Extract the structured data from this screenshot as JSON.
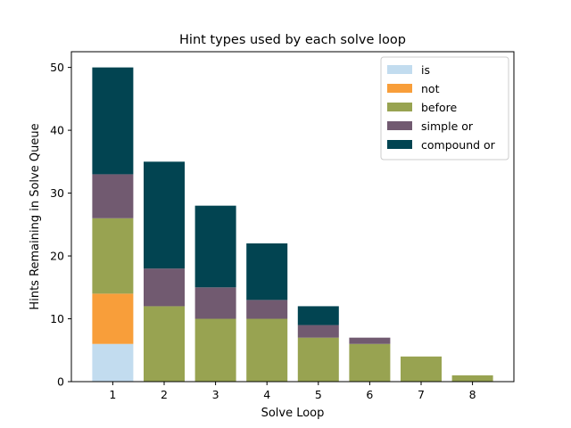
{
  "chart_data": {
    "type": "bar",
    "stacked": true,
    "title": "Hint types used by each solve loop",
    "xlabel": "Solve Loop",
    "ylabel": "Hints Remaining in Solve Queue",
    "categories": [
      "1",
      "2",
      "3",
      "4",
      "5",
      "6",
      "7",
      "8"
    ],
    "ylim": [
      0,
      52.5
    ],
    "yticks": [
      0,
      10,
      20,
      30,
      40,
      50
    ],
    "grid": false,
    "legend_position": "top-right",
    "series": [
      {
        "name": "is",
        "color": "#c2dcef",
        "values": [
          6,
          0,
          0,
          0,
          0,
          0,
          0,
          0
        ]
      },
      {
        "name": "not",
        "color": "#f89e3a",
        "values": [
          8,
          0,
          0,
          0,
          0,
          0,
          0,
          0
        ]
      },
      {
        "name": "before",
        "color": "#98a351",
        "values": [
          12,
          12,
          10,
          10,
          7,
          6,
          4,
          1
        ]
      },
      {
        "name": "simple or",
        "color": "#715a70",
        "values": [
          7,
          6,
          5,
          3,
          2,
          1,
          0,
          0
        ]
      },
      {
        "name": "compound or",
        "color": "#024451",
        "values": [
          17,
          17,
          13,
          9,
          3,
          0,
          0,
          0
        ]
      }
    ]
  }
}
